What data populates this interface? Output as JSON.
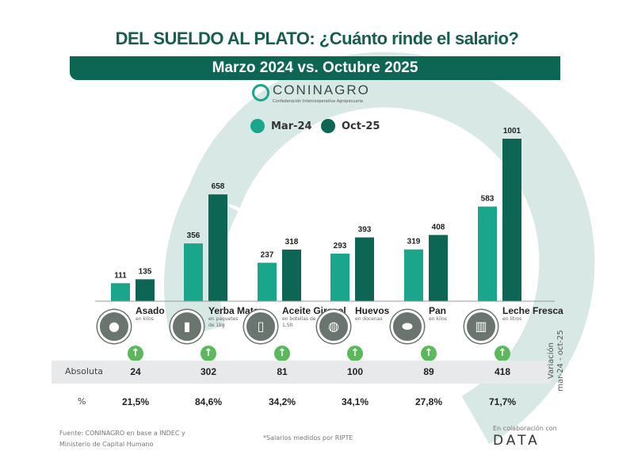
{
  "title": "DEL SUELDO AL PLATO: ¿Cuánto rinde el salario?",
  "subtitle": "Marzo 2024 vs. Octubre 2025",
  "logo": {
    "name": "CONINAGRO",
    "tagline": "Confederación Intercooperativa Agropecuaria"
  },
  "colors": {
    "mar24": "#1aa68a",
    "oct25": "#0d6654",
    "title": "#175e4e",
    "ring": "#d8e8e4",
    "up": "#5cb85c"
  },
  "chart_data": {
    "type": "bar",
    "categories": [
      "Asado",
      "Yerba Mate",
      "Aceite Girasol",
      "Huevos",
      "Pan",
      "Leche Fresca"
    ],
    "series": [
      {
        "name": "Mar-24",
        "values": [
          111,
          356,
          237,
          293,
          319,
          583
        ]
      },
      {
        "name": "Oct-25",
        "values": [
          135,
          658,
          318,
          393,
          408,
          1001
        ]
      }
    ],
    "legend": "top-center",
    "grid": false,
    "ylim": [
      0,
      1001
    ]
  },
  "items": [
    {
      "name": "Asado",
      "sub": "en kilos",
      "icon": "meat-icon"
    },
    {
      "name": "Yerba Mate",
      "sub": "en paquetes de 1kg",
      "icon": "yerba-package-icon"
    },
    {
      "name": "Aceite Girasol",
      "sub": "en botellas de 1,5lt",
      "icon": "oil-bottle-icon"
    },
    {
      "name": "Huevos",
      "sub": "en docenas",
      "icon": "eggs-icon"
    },
    {
      "name": "Pan",
      "sub": "en kilos",
      "icon": "bread-icon"
    },
    {
      "name": "Leche Fresca",
      "sub": "en litros",
      "icon": "milk-icon"
    }
  ],
  "table": {
    "abs_label": "Absoluta",
    "pct_label": "%",
    "absolute": [
      "24",
      "302",
      "81",
      "100",
      "89",
      "418"
    ],
    "percent": [
      "21,5%",
      "84,6%",
      "34,2%",
      "34,1%",
      "27,8%",
      "71,7%"
    ],
    "side_label_1": "Variación",
    "side_label_2": "mar-24 - oct-25"
  },
  "footer": {
    "source_1": "Fuente: CONINAGRO en base a INDEC y",
    "source_2": "Ministerio de Capital Humano",
    "note": "*Salarios medidos por RIPTE",
    "collab": "En colaboración con",
    "data_logo": "DATA"
  }
}
